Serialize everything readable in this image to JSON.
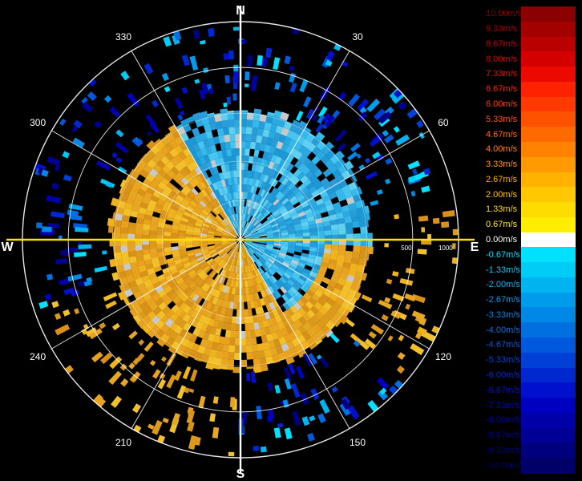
{
  "chart_data": {
    "type": "polar-radial-velocity",
    "compass": {
      "north": "N",
      "east": "E",
      "south": "S",
      "west": "W"
    },
    "bearing_labels": [
      "30",
      "60",
      "120",
      "150",
      "210",
      "240",
      "300",
      "330"
    ],
    "range_labels": [
      "500",
      "1000"
    ],
    "colorbar": {
      "entries": [
        {
          "label": "10.00m/s",
          "color": "#8b0000"
        },
        {
          "label": "9.33m/s",
          "color": "#a30000"
        },
        {
          "label": "8.67m/s",
          "color": "#bb0000"
        },
        {
          "label": "8.00m/s",
          "color": "#d40000"
        },
        {
          "label": "7.33m/s",
          "color": "#ec0a00"
        },
        {
          "label": "6.67m/s",
          "color": "#ff2200"
        },
        {
          "label": "6.00m/s",
          "color": "#ff3a00"
        },
        {
          "label": "5.33m/s",
          "color": "#ff5200"
        },
        {
          "label": "4.67m/s",
          "color": "#ff6a00"
        },
        {
          "label": "4.00m/s",
          "color": "#ff8200"
        },
        {
          "label": "3.33m/s",
          "color": "#ff9a00"
        },
        {
          "label": "2.67m/s",
          "color": "#ffb200"
        },
        {
          "label": "2.00m/s",
          "color": "#ffc800"
        },
        {
          "label": "1.33m/s",
          "color": "#ffdc00"
        },
        {
          "label": "0.67m/s",
          "color": "#ffee00"
        },
        {
          "label": "0.00m/s",
          "color": "#ffffff"
        },
        {
          "label": "-0.67m/s",
          "color": "#00e0ff"
        },
        {
          "label": "-1.33m/s",
          "color": "#00ccf5"
        },
        {
          "label": "-2.00m/s",
          "color": "#00b4f0"
        },
        {
          "label": "-2.67m/s",
          "color": "#009ceb"
        },
        {
          "label": "-3.33m/s",
          "color": "#0088e6"
        },
        {
          "label": "-4.00m/s",
          "color": "#0070e0"
        },
        {
          "label": "-4.67m/s",
          "color": "#0058dc"
        },
        {
          "label": "-5.33m/s",
          "color": "#0040d6"
        },
        {
          "label": "-6.00m/s",
          "color": "#0028d0"
        },
        {
          "label": "-6.67m/s",
          "color": "#0010cc"
        },
        {
          "label": "-7.33m/s",
          "color": "#0000c0"
        },
        {
          "label": "-8.00m/s",
          "color": "#0000aa"
        },
        {
          "label": "-8.67m/s",
          "color": "#000094"
        },
        {
          "label": "-9.33m/s",
          "color": "#00007e"
        },
        {
          "label": "-10.00m/s",
          "color": "#000068"
        }
      ]
    },
    "colors": {
      "background": "#000000",
      "grid": "#ffffff",
      "axis": "#ffffff",
      "east_west_axis": "#ffe000",
      "warm_sector": "#e8a21e",
      "cool_sector": "#2aa8e0"
    }
  }
}
